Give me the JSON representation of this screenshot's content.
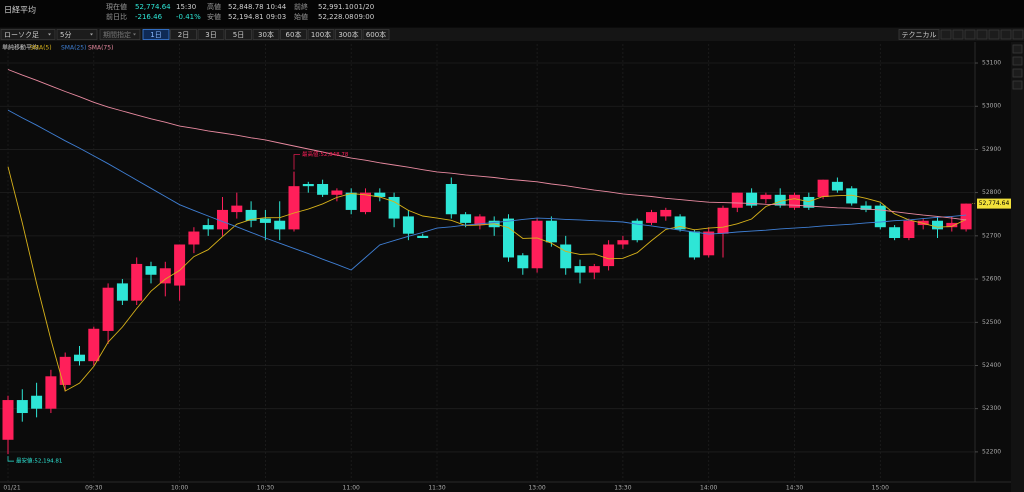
{
  "header": {
    "title": "日経平均",
    "info": [
      [
        {
          "label": "現在値",
          "value": "52,774.64",
          "time": "15:30"
        },
        {
          "label": "高値",
          "value": "52,848.78",
          "time": "10:44"
        },
        {
          "label": "前終",
          "value": "52,991.10",
          "time": "01/20"
        }
      ],
      [
        {
          "label": "前日比",
          "value": "-216.46",
          "time": "-0.41%"
        },
        {
          "label": "安値",
          "value": "52,194.81",
          "time": "09:03"
        },
        {
          "label": "始値",
          "value": "52,228.08",
          "time": "09:00"
        }
      ]
    ]
  },
  "toolbar": {
    "chart_kind": "ローソク足",
    "interval": "5分",
    "period": "期間指定",
    "ranges": [
      "1日",
      "2日",
      "3日",
      "5日",
      "30本",
      "60本",
      "100本",
      "300本",
      "600本"
    ],
    "technical": "テクニカル"
  },
  "chart_data": {
    "type": "candlestick",
    "legend_title": "単純移動平均",
    "up_color": "#ff1f5a",
    "down_color": "#2ee6d6",
    "categories": [
      "01/21",
      null,
      null,
      null,
      null,
      null,
      "09:30",
      null,
      null,
      null,
      null,
      null,
      "10:00",
      null,
      null,
      null,
      null,
      null,
      "10:30",
      null,
      null,
      null,
      null,
      null,
      "11:00",
      null,
      null,
      null,
      null,
      null,
      "11:30",
      null,
      null,
      null,
      null,
      null,
      null,
      "13:00",
      null,
      null,
      null,
      null,
      null,
      "13:30",
      null,
      null,
      null,
      null,
      null,
      "14:00",
      null,
      null,
      null,
      null,
      null,
      "14:30",
      null,
      null,
      null,
      null,
      null,
      "15:00",
      null,
      null,
      null,
      null,
      null,
      null
    ],
    "open": [
      52228.08,
      52320,
      52330,
      52300,
      52355,
      52425,
      52410,
      52480,
      52590,
      52550,
      52630,
      52590,
      52585,
      52680,
      52725,
      52715,
      52755,
      52760,
      52740,
      52735,
      52715,
      52820,
      52820,
      52795,
      52800,
      52755,
      52800,
      52790,
      52745,
      52700,
      null,
      52820,
      52750,
      52725,
      52735,
      52740,
      52655,
      52625,
      52735,
      52680,
      52630,
      52615,
      52630,
      52680,
      52735,
      52730,
      52745,
      52745,
      52710,
      52655,
      52705,
      52765,
      52800,
      52785,
      52795,
      52765,
      52790,
      52790,
      52825,
      52810,
      52770,
      52770,
      52720,
      52695,
      52725,
      52735,
      52720,
      52715
    ],
    "high": [
      52330,
      52345,
      52360,
      52390,
      52430,
      52445,
      52490,
      52590,
      52600,
      52650,
      52640,
      52640,
      52680,
      52720,
      52740,
      52790,
      52800,
      52780,
      52760,
      52780,
      52848.78,
      52825,
      52830,
      52810,
      52810,
      52810,
      52810,
      52800,
      52760,
      52705,
      null,
      52835,
      52755,
      52750,
      52745,
      52750,
      52660,
      52740,
      52745,
      52700,
      52645,
      52635,
      52690,
      52700,
      52740,
      52760,
      52765,
      52750,
      52715,
      52720,
      52770,
      52800,
      52810,
      52800,
      52810,
      52800,
      52800,
      52830,
      52835,
      52815,
      52780,
      52775,
      52725,
      52740,
      52740,
      52745,
      52745,
      52775
    ],
    "low": [
      52194.81,
      52270,
      52280,
      52290,
      52340,
      52400,
      52400,
      52450,
      52540,
      52540,
      52590,
      52560,
      52550,
      52660,
      52700,
      52700,
      52740,
      52720,
      52690,
      52690,
      52710,
      52800,
      52790,
      52780,
      52750,
      52750,
      52780,
      52720,
      52690,
      52695,
      null,
      52740,
      52720,
      52715,
      52700,
      52640,
      52610,
      52615,
      52675,
      52610,
      52590,
      52600,
      52620,
      52670,
      52685,
      52725,
      52735,
      52710,
      52645,
      52650,
      52650,
      52755,
      52765,
      52775,
      52765,
      52760,
      52760,
      52785,
      52800,
      52770,
      52755,
      52715,
      52690,
      52690,
      52715,
      52695,
      52710,
      52710
    ],
    "close": [
      52320,
      52290,
      52300,
      52375,
      52420,
      52410,
      52485,
      52580,
      52550,
      52635,
      52610,
      52625,
      52680,
      52710,
      52715,
      52760,
      52770,
      52735,
      52730,
      52715,
      52815,
      52815,
      52795,
      52805,
      52760,
      52800,
      52790,
      52740,
      52705,
      52695,
      null,
      52750,
      52730,
      52745,
      52720,
      52650,
      52625,
      52735,
      52685,
      52625,
      52615,
      52630,
      52680,
      52690,
      52690,
      52755,
      52760,
      52715,
      52650,
      52710,
      52765,
      52800,
      52770,
      52795,
      52770,
      52795,
      52765,
      52830,
      52805,
      52775,
      52760,
      52720,
      52695,
      52735,
      52735,
      52715,
      52730,
      52774.64
    ],
    "series": [
      {
        "name": "SMA(5)",
        "color": "#d8b21a",
        "values": [
          52860,
          52730,
          52590,
          52460,
          52341,
          52359,
          52398,
          52454,
          52489,
          52532,
          52572,
          52600,
          52620,
          52652,
          52668,
          52698,
          52727,
          52738,
          52742,
          52742,
          52753,
          52762,
          52774,
          52789,
          52798,
          52795,
          52790,
          52779,
          52759,
          52746,
          52741,
          52736,
          52724,
          52725,
          52728,
          52719,
          52694,
          52695,
          52683,
          52664,
          52657,
          52658,
          52647,
          52648,
          52661,
          52689,
          52715,
          52722,
          52714,
          52718,
          52720,
          52728,
          52739,
          52768,
          52780,
          52786,
          52779,
          52791,
          52793,
          52794,
          52787,
          52778,
          52751,
          52737,
          52729,
          52720,
          52722,
          52738
        ]
      },
      {
        "name": "SMA(25)",
        "color": "#3f7fd4",
        "values": [
          52991,
          52973,
          52956,
          52938,
          52920,
          52903,
          52885,
          52867,
          52848,
          52829,
          52810,
          52791,
          52772,
          52759,
          52746,
          52733,
          52721,
          52708,
          52695,
          52683,
          52671,
          52659,
          52646,
          52634,
          52621,
          52650,
          52679,
          52689,
          52699,
          52708,
          52718,
          52721,
          52725,
          52728,
          52731,
          52734,
          52738,
          52741,
          52740,
          52738,
          52737,
          52735,
          52734,
          52732,
          52727,
          52723,
          52718,
          52713,
          52709,
          52704,
          52706,
          52709,
          52711,
          52713,
          52716,
          52718,
          52720,
          52723,
          52725,
          52727,
          52730,
          52732,
          52735,
          52737,
          52740,
          52743,
          52745,
          52748
        ]
      },
      {
        "name": "SMA(75)",
        "color": "#e88aa0",
        "values": [
          53085,
          53072,
          53060,
          53047,
          53034,
          53022,
          53009,
          52998,
          52989,
          52980,
          52971,
          52963,
          52954,
          52949,
          52943,
          52938,
          52933,
          52927,
          52922,
          52915,
          52908,
          52901,
          52894,
          52887,
          52880,
          52875,
          52869,
          52864,
          52859,
          52853,
          52848,
          52845,
          52841,
          52838,
          52835,
          52831,
          52828,
          52825,
          52820,
          52816,
          52811,
          52806,
          52802,
          52797,
          52794,
          52791,
          52787,
          52784,
          52781,
          52778,
          52777,
          52776,
          52775,
          52773,
          52772,
          52771,
          52769,
          52767,
          52765,
          52764,
          52762,
          52760,
          52756,
          52752,
          52748,
          52745,
          52741,
          52737
        ]
      }
    ],
    "high_label": "最高値:52,848.78",
    "low_label": "最安値:52,194.81",
    "last_label": "52,774.64",
    "ylim": [
      52135,
      53144
    ],
    "yticks": [
      52200,
      52300,
      52400,
      52500,
      52600,
      52700,
      52800,
      52900,
      53000,
      53100
    ],
    "grid": true
  }
}
